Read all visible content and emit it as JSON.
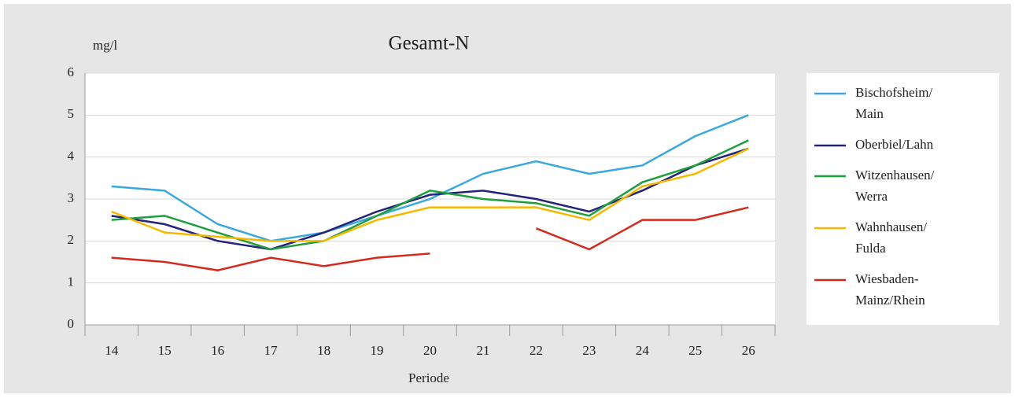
{
  "chart_data": {
    "type": "line",
    "title": "Gesamt-N",
    "y_label": "mg/l",
    "x_label": "Periode",
    "categories": [
      "14",
      "15",
      "16",
      "17",
      "18",
      "19",
      "20",
      "21",
      "22",
      "23",
      "24",
      "25",
      "26"
    ],
    "series": [
      {
        "name": "Bischofsheim/\nMain",
        "color": "#3aa8dc",
        "values": [
          3.3,
          3.2,
          2.4,
          2.0,
          2.2,
          2.6,
          3.0,
          3.6,
          3.9,
          3.6,
          3.8,
          4.5,
          5.0
        ]
      },
      {
        "name": "Oberbiel/Lahn",
        "color": "#23237a",
        "values": [
          2.6,
          2.4,
          2.0,
          1.8,
          2.2,
          2.7,
          3.1,
          3.2,
          3.0,
          2.7,
          3.2,
          3.8,
          4.2
        ]
      },
      {
        "name": "Witzenhausen/\nWerra",
        "color": "#1f9e3f",
        "values": [
          2.5,
          2.6,
          2.2,
          1.8,
          2.0,
          2.6,
          3.2,
          3.0,
          2.9,
          2.6,
          3.4,
          3.8,
          4.4
        ]
      },
      {
        "name": "Wahnhausen/\nFulda",
        "color": "#f5b800",
        "values": [
          2.7,
          2.2,
          2.1,
          2.0,
          2.0,
          2.5,
          2.8,
          2.8,
          2.8,
          2.5,
          3.3,
          3.6,
          4.2
        ]
      },
      {
        "name": "Wiesbaden-\nMainz/Rhein",
        "color": "#d42a1e",
        "values": [
          1.6,
          1.5,
          1.3,
          1.6,
          1.4,
          1.6,
          1.7,
          null,
          2.3,
          1.8,
          2.5,
          2.5,
          2.8
        ]
      }
    ],
    "ylim": [
      0,
      6
    ],
    "yticks": [
      0,
      1,
      2,
      3,
      4,
      5,
      6
    ],
    "grid": true,
    "legend": "right"
  }
}
